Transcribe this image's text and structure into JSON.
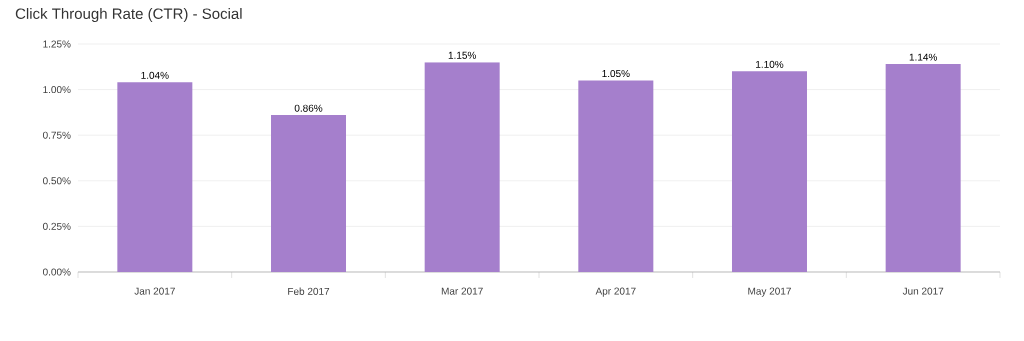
{
  "chart_data": {
    "type": "bar",
    "title": "Click Through Rate (CTR) - Social",
    "categories": [
      "Jan 2017",
      "Feb 2017",
      "Mar 2017",
      "Apr 2017",
      "May 2017",
      "Jun 2017"
    ],
    "values": [
      1.04,
      0.86,
      1.15,
      1.05,
      1.1,
      1.14
    ],
    "value_labels": [
      "1.04%",
      "0.86%",
      "1.15%",
      "1.05%",
      "1.10%",
      "1.14%"
    ],
    "color": "#a57fcc",
    "ylim": [
      0,
      1.25
    ],
    "yticks": [
      {
        "value": 0,
        "label": "0.00%"
      },
      {
        "value": 0.25,
        "label": "0.25%"
      },
      {
        "value": 0.5,
        "label": "0.50%"
      },
      {
        "value": 0.75,
        "label": "0.75%"
      },
      {
        "value": 1.0,
        "label": "1.00%"
      },
      {
        "value": 1.25,
        "label": "1.25%"
      }
    ],
    "grid": "y"
  }
}
